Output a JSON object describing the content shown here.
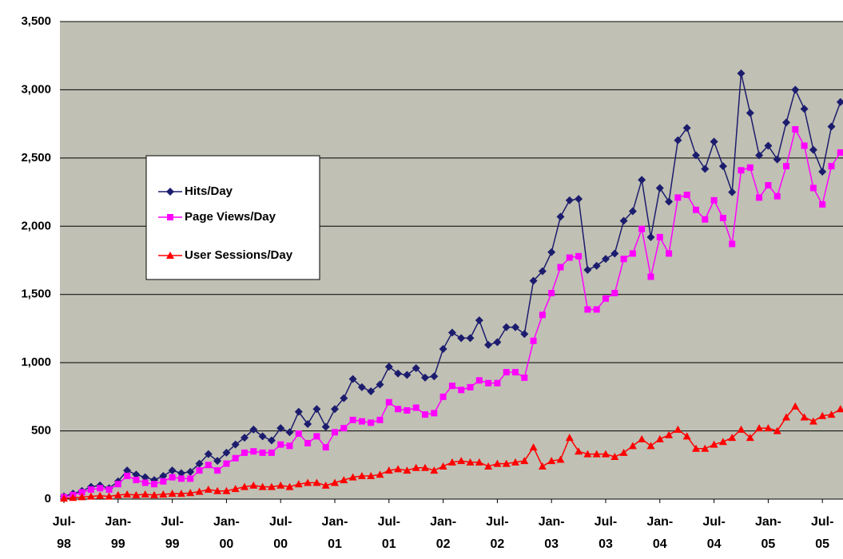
{
  "chart_data": {
    "type": "line",
    "categories": [
      "Jul-\n98",
      null,
      null,
      null,
      null,
      null,
      "Jan-\n99",
      null,
      null,
      null,
      null,
      null,
      "Jul-\n99",
      null,
      null,
      null,
      null,
      null,
      "Jan-\n00",
      null,
      null,
      null,
      null,
      null,
      "Jul-\n00",
      null,
      null,
      null,
      null,
      null,
      "Jan-\n01",
      null,
      null,
      null,
      null,
      null,
      "Jul-\n01",
      null,
      null,
      null,
      null,
      null,
      "Jan-\n02",
      null,
      null,
      null,
      null,
      null,
      "Jul-\n02",
      null,
      null,
      null,
      null,
      null,
      "Jan-\n03",
      null,
      null,
      null,
      null,
      null,
      "Jul-\n03",
      null,
      null,
      null,
      null,
      null,
      "Jan-\n04",
      null,
      null,
      null,
      null,
      null,
      "Jul-\n04",
      null,
      null,
      null,
      null,
      null,
      "Jan-\n05",
      null,
      null,
      null,
      null,
      null,
      "Jul-\n05",
      null,
      null
    ],
    "series": [
      {
        "name": "Hits/Day",
        "color": "#1c1c6e",
        "marker": "diamond",
        "values": [
          20,
          40,
          60,
          90,
          100,
          80,
          130,
          210,
          180,
          160,
          140,
          170,
          210,
          190,
          200,
          260,
          330,
          280,
          340,
          400,
          450,
          510,
          460,
          430,
          520,
          490,
          640,
          550,
          660,
          530,
          660,
          740,
          880,
          820,
          790,
          840,
          970,
          920,
          910,
          960,
          890,
          900,
          1100,
          1220,
          1180,
          1180,
          1310,
          1130,
          1150,
          1260,
          1260,
          1210,
          1600,
          1670,
          1810,
          2070,
          2190,
          2200,
          1680,
          1710,
          1760,
          1800,
          2040,
          2110,
          2340,
          1920,
          2280,
          2180,
          2630,
          2720,
          2520,
          2420,
          2620,
          2440,
          2250,
          3120,
          2830,
          2520,
          2590,
          2490,
          2760,
          3000,
          2860,
          2560,
          2400,
          2730,
          2910
        ]
      },
      {
        "name": "Page Views/Day",
        "color": "#ff00ff",
        "marker": "square",
        "values": [
          15,
          30,
          50,
          70,
          80,
          70,
          110,
          170,
          140,
          120,
          110,
          130,
          160,
          150,
          150,
          210,
          250,
          210,
          260,
          300,
          340,
          350,
          340,
          340,
          400,
          390,
          480,
          410,
          460,
          380,
          490,
          520,
          580,
          570,
          560,
          580,
          710,
          660,
          650,
          670,
          620,
          630,
          750,
          830,
          800,
          820,
          870,
          850,
          850,
          930,
          930,
          890,
          1160,
          1350,
          1510,
          1700,
          1770,
          1780,
          1390,
          1390,
          1470,
          1510,
          1760,
          1800,
          1980,
          1630,
          1920,
          1800,
          2210,
          2230,
          2120,
          2050,
          2190,
          2060,
          1870,
          2410,
          2430,
          2210,
          2300,
          2220,
          2440,
          2710,
          2590,
          2280,
          2160,
          2440,
          2540
        ]
      },
      {
        "name": "User Sessions/Day",
        "color": "#ff0000",
        "marker": "triangle",
        "values": [
          5,
          10,
          15,
          20,
          25,
          20,
          30,
          35,
          30,
          35,
          30,
          35,
          40,
          40,
          45,
          55,
          70,
          60,
          60,
          75,
          90,
          100,
          90,
          90,
          100,
          90,
          110,
          120,
          120,
          100,
          120,
          140,
          160,
          170,
          170,
          180,
          210,
          220,
          210,
          230,
          230,
          210,
          240,
          270,
          280,
          270,
          270,
          240,
          260,
          260,
          270,
          280,
          380,
          240,
          280,
          290,
          450,
          350,
          330,
          330,
          330,
          310,
          340,
          390,
          440,
          390,
          440,
          470,
          510,
          460,
          370,
          370,
          400,
          420,
          450,
          510,
          450,
          520,
          520,
          500,
          600,
          680,
          600,
          570,
          610,
          620,
          660
        ]
      }
    ],
    "ylim": [
      0,
      3500
    ],
    "yticks": [
      0,
      500,
      {
        "value": 1000,
        "label": "1,000"
      },
      {
        "value": 1500,
        "label": "1,500"
      },
      {
        "value": 2000,
        "label": "2,000"
      },
      {
        "value": 2500,
        "label": "2,500"
      },
      {
        "value": 3000,
        "label": "3,000"
      },
      {
        "value": 3500,
        "label": "3,500"
      }
    ],
    "grid": true,
    "legend": "left"
  }
}
